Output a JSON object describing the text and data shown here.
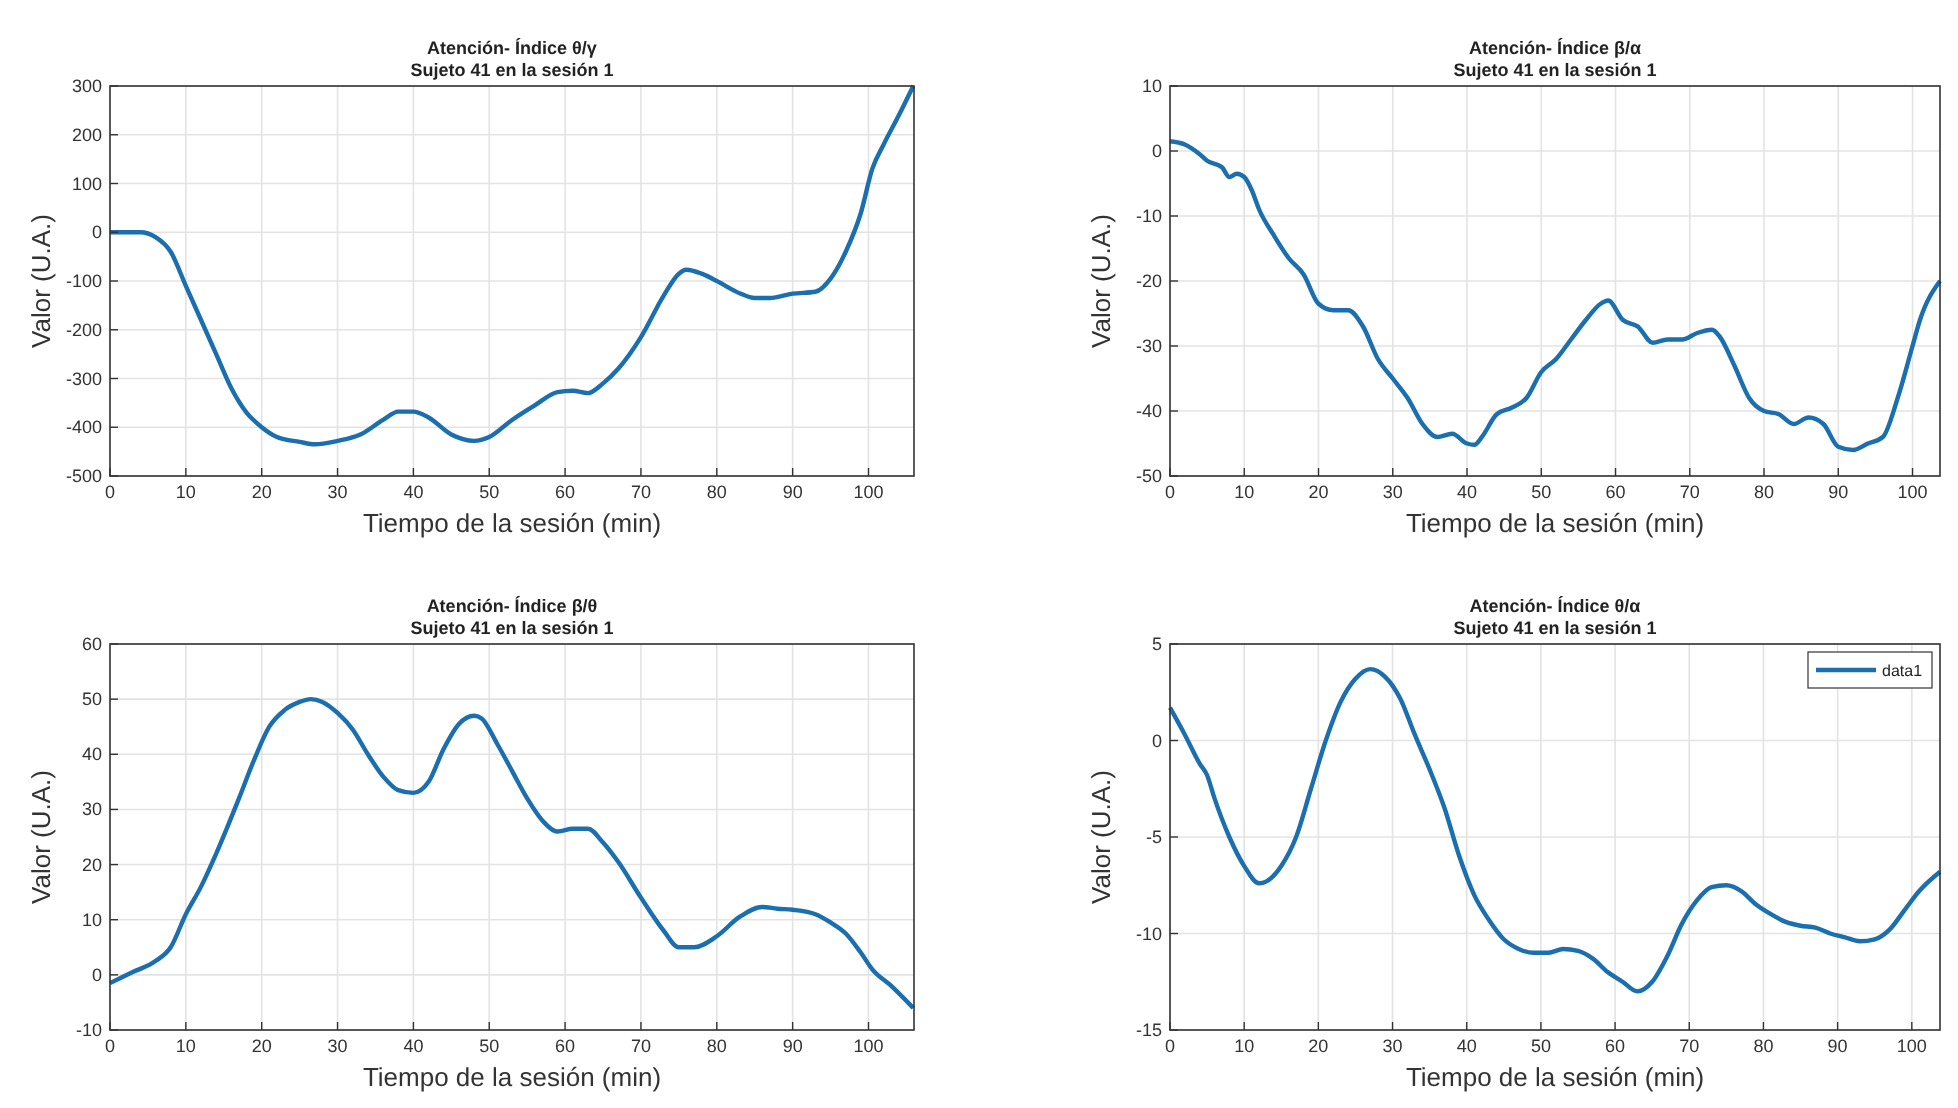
{
  "chart_data": [
    {
      "type": "line",
      "title": "Atención- Índice θ/γ",
      "subtitle": "Sujeto 41 en la sesión 1",
      "xlabel": "Tiempo de la sesión (min)",
      "ylabel": "Valor (U.A.)",
      "xlim": [
        0,
        106
      ],
      "ylim": [
        -500,
        300
      ],
      "xticks": [
        0,
        10,
        20,
        30,
        40,
        50,
        60,
        70,
        80,
        90,
        100
      ],
      "yticks": [
        -500,
        -400,
        -300,
        -200,
        -100,
        0,
        100,
        200,
        300
      ],
      "grid": true,
      "legend": false,
      "x": [
        0,
        4,
        6,
        8,
        10,
        12,
        14,
        16,
        18,
        20,
        22,
        25,
        27,
        30,
        33,
        36,
        38,
        40,
        42,
        45,
        48,
        50,
        53,
        56,
        59,
        61,
        63,
        65,
        67,
        70,
        73,
        75,
        76,
        78,
        80,
        83,
        85,
        87,
        90,
        93,
        95,
        97,
        99,
        100.5,
        102,
        104,
        105.9
      ],
      "series": [
        {
          "color": "#1b6fae",
          "values": [
            0,
            0,
            -10,
            -40,
            -110,
            -180,
            -250,
            -320,
            -370,
            -400,
            -420,
            -430,
            -435,
            -428,
            -415,
            -385,
            -368,
            -368,
            -380,
            -415,
            -428,
            -420,
            -385,
            -355,
            -328,
            -325,
            -330,
            -310,
            -280,
            -215,
            -130,
            -85,
            -77,
            -85,
            -100,
            -125,
            -135,
            -135,
            -126,
            -122,
            -95,
            -40,
            40,
            130,
            180,
            240,
            300
          ]
        }
      ]
    },
    {
      "type": "line",
      "title": "Atención- Índice β/α",
      "subtitle": "Sujeto 41 en la sesión 1",
      "xlabel": "Tiempo de la sesión (min)",
      "ylabel": "Valor (U.A.)",
      "xlim": [
        0,
        103.7
      ],
      "ylim": [
        -50,
        10
      ],
      "xticks": [
        0,
        10,
        20,
        30,
        40,
        50,
        60,
        70,
        80,
        90,
        100
      ],
      "yticks": [
        -50,
        -40,
        -30,
        -20,
        -10,
        0,
        10
      ],
      "grid": true,
      "legend": false,
      "x": [
        0,
        2,
        4,
        5,
        7,
        8,
        9,
        10,
        11,
        12,
        14,
        16,
        18,
        20,
        22,
        24,
        26,
        28,
        30,
        32,
        34,
        36,
        38,
        40,
        41,
        42,
        44,
        46,
        48,
        50,
        52,
        54,
        56,
        58,
        59,
        61,
        63,
        65,
        67,
        69,
        71,
        73,
        74,
        76,
        78,
        80,
        82,
        84,
        86,
        88,
        90,
        92,
        94,
        96,
        98,
        100,
        101,
        103.7
      ],
      "series": [
        {
          "color": "#1b6fae",
          "values": [
            1.5,
            1,
            -0.5,
            -1.5,
            -2.5,
            -4,
            -3.5,
            -4,
            -6,
            -9,
            -13,
            -16.5,
            -19,
            -23.5,
            -24.5,
            -24.5,
            -27,
            -32,
            -35,
            -38,
            -42,
            -44,
            -43.5,
            -45,
            -45.2,
            -44,
            -40.5,
            -39.5,
            -38,
            -34,
            -32,
            -29,
            -26,
            -23.5,
            -23,
            -26,
            -27,
            -29.5,
            -29,
            -29,
            -28,
            -27.5,
            -28.5,
            -33,
            -38,
            -40,
            -40.5,
            -42,
            -41,
            -42,
            -45.5,
            -46,
            -45,
            -44,
            -38,
            -30,
            -26,
            -20
          ]
        }
      ]
    },
    {
      "type": "line",
      "title": "Atención- Índice β/θ",
      "subtitle": "Sujeto 41 en la sesión 1",
      "xlabel": "Tiempo de la sesión (min)",
      "ylabel": "Valor (U.A.)",
      "xlim": [
        0,
        106
      ],
      "ylim": [
        -10,
        60
      ],
      "xticks": [
        0,
        10,
        20,
        30,
        40,
        50,
        60,
        70,
        80,
        90,
        100
      ],
      "yticks": [
        -10,
        0,
        10,
        20,
        30,
        40,
        50,
        60
      ],
      "grid": true,
      "legend": false,
      "x": [
        0,
        3,
        6,
        8,
        10,
        12,
        14,
        17,
        19,
        21,
        23,
        25,
        26.5,
        28,
        30,
        32,
        34,
        36,
        38,
        40,
        42,
        44,
        46,
        48,
        49,
        51,
        53,
        55,
        57,
        59,
        61,
        63,
        65,
        67,
        70,
        73,
        75,
        77,
        80,
        83,
        86,
        88,
        90,
        93,
        95,
        97,
        99,
        100.5,
        103,
        105.9
      ],
      "series": [
        {
          "color": "#1b6fae",
          "values": [
            -1.5,
            0.5,
            2.5,
            5,
            11,
            16,
            22,
            32,
            39,
            45,
            48,
            49.5,
            50,
            49.5,
            47.5,
            44.5,
            40,
            36,
            33.5,
            33,
            35,
            41,
            45.5,
            47,
            46.5,
            42,
            37,
            32,
            28,
            26,
            26.5,
            26.5,
            24,
            20.5,
            14,
            8,
            5,
            5,
            7,
            10.5,
            12.3,
            12,
            11.8,
            11,
            9.5,
            7.5,
            4,
            1,
            -2,
            -6
          ]
        }
      ]
    },
    {
      "type": "line",
      "title": "Atención- Índice θ/α",
      "subtitle": "Sujeto 41 en la sesión 1",
      "xlabel": "Tiempo de la sesión (min)",
      "ylabel": "Valor (U.A.)",
      "xlim": [
        0,
        103.8
      ],
      "ylim": [
        -15,
        5
      ],
      "xticks": [
        0,
        10,
        20,
        30,
        40,
        50,
        60,
        70,
        80,
        90,
        100
      ],
      "yticks": [
        -15,
        -10,
        -5,
        0,
        5
      ],
      "grid": true,
      "legend": "top right",
      "x": [
        0,
        2,
        4,
        5,
        6,
        8,
        10,
        12,
        13,
        15,
        17,
        19,
        21,
        23,
        25,
        27,
        29,
        31,
        33,
        35,
        37,
        39,
        41,
        43,
        45,
        47,
        49,
        51,
        53,
        55,
        57,
        59,
        61,
        63,
        65,
        67,
        69,
        71,
        73,
        75,
        77,
        79,
        81,
        83,
        85,
        87,
        89,
        91,
        93,
        95,
        97,
        99,
        101,
        103.8
      ],
      "series": [
        {
          "name": "data1",
          "color": "#1b6fae",
          "values": [
            1.7,
            0.3,
            -1.2,
            -1.8,
            -3,
            -5,
            -6.5,
            -7.4,
            -7.3,
            -6.5,
            -5,
            -2.5,
            0,
            2,
            3.2,
            3.7,
            3.3,
            2.2,
            0.3,
            -1.5,
            -3.5,
            -6,
            -8,
            -9.3,
            -10.3,
            -10.8,
            -11,
            -11,
            -10.8,
            -10.9,
            -11.3,
            -12,
            -12.5,
            -13,
            -12.5,
            -11.2,
            -9.5,
            -8.3,
            -7.6,
            -7.5,
            -7.8,
            -8.5,
            -9,
            -9.4,
            -9.6,
            -9.7,
            -10,
            -10.2,
            -10.4,
            -10.3,
            -9.8,
            -8.8,
            -7.8,
            -6.8
          ]
        }
      ]
    }
  ]
}
